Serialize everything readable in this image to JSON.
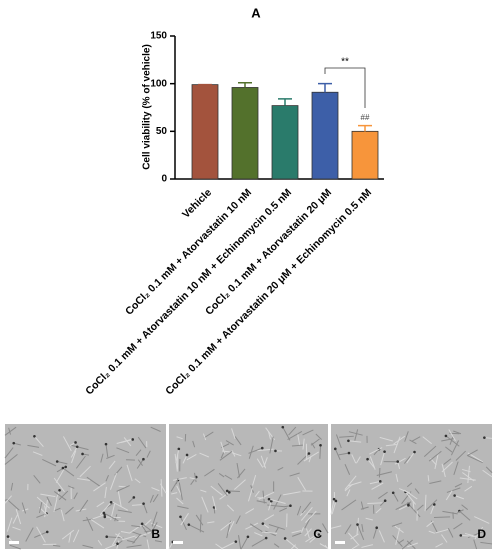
{
  "chart_data": {
    "type": "bar",
    "title": "A",
    "y_label": "Cell viability (% of vehicle)",
    "categories": [
      "Vehicle",
      "CoCl₂ 0.1 mM + Atorvastatin 10 nM",
      "CoCl₂ 0.1 mM + Atorvastatin 10 nM + Echinomycin 0.5 nM",
      "CoCl₂ 0.1 mM + Atorvastatin 20 μM",
      "CoCl₂ 0.1 mM + Atorvastatin 20 μM + Echinomycin 0.5 nM"
    ],
    "values": [
      99,
      96,
      77,
      91,
      50
    ],
    "errors": [
      0,
      5,
      7,
      9,
      6
    ],
    "colors": [
      "#a3533d",
      "#53712c",
      "#2a7b6b",
      "#3d5fa8",
      "#f7953b"
    ],
    "ylim": [
      0,
      150
    ],
    "yticks": [
      0,
      50,
      100,
      150
    ],
    "annotations": [
      "**",
      "##"
    ]
  },
  "panels": [
    "B",
    "C",
    "D"
  ]
}
